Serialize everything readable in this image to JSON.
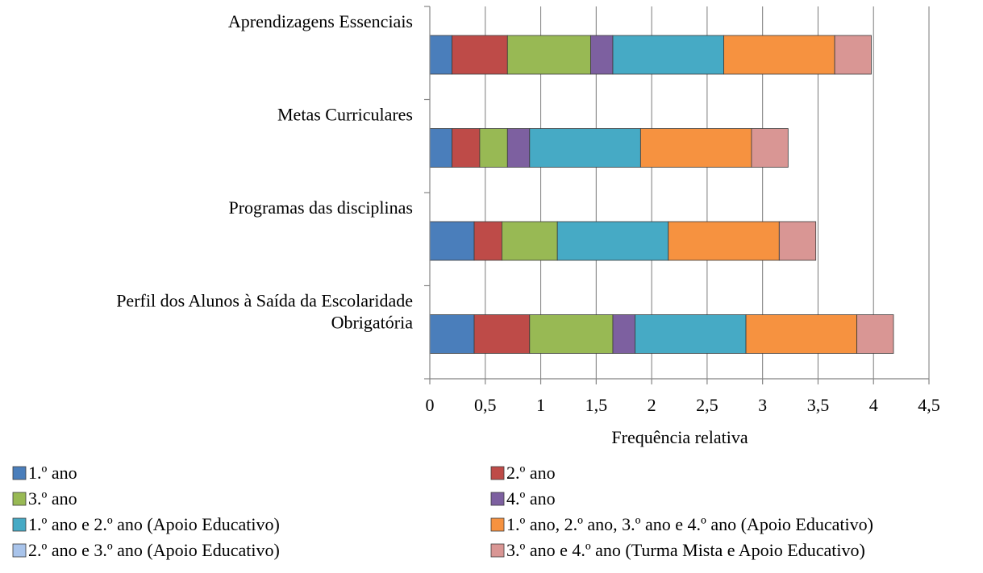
{
  "chart_data": {
    "type": "bar",
    "orientation": "horizontal",
    "stacked": true,
    "title": "",
    "xlabel": "Frequência relativa",
    "ylabel": "",
    "xlim": [
      0,
      4.5
    ],
    "x_ticks": [
      0,
      0.5,
      1,
      1.5,
      2,
      2.5,
      3,
      3.5,
      4,
      4.5
    ],
    "x_tick_labels": [
      "0",
      "0,5",
      "1",
      "1,5",
      "2",
      "2,5",
      "3",
      "3,5",
      "4",
      "4,5"
    ],
    "grid": true,
    "legend_position": "bottom",
    "categories": [
      [
        "Aprendizagens Essenciais"
      ],
      [
        "Metas Curriculares"
      ],
      [
        "Programas das disciplinas"
      ],
      [
        "Perfil dos Alunos à Saída da Escolaridade",
        "Obrigatória"
      ]
    ],
    "series": [
      {
        "name": "1.º ano",
        "color": "#4A7EBB",
        "values": [
          0.2,
          0.2,
          0.4,
          0.4
        ]
      },
      {
        "name": "2.º ano",
        "color": "#BE4B48",
        "values": [
          0.5,
          0.25,
          0.25,
          0.5
        ]
      },
      {
        "name": "3.º ano",
        "color": "#98B954",
        "values": [
          0.75,
          0.25,
          0.5,
          0.75
        ]
      },
      {
        "name": "4.º ano",
        "color": "#7D60A0",
        "values": [
          0.2,
          0.2,
          0.0,
          0.2
        ]
      },
      {
        "name": "1.º ano e 2.º ano (Apoio Educativo)",
        "color": "#46AAC5",
        "values": [
          1.0,
          1.0,
          1.0,
          1.0
        ]
      },
      {
        "name": "1.º ano, 2.º ano, 3.º ano e 4.º ano (Apoio Educativo)",
        "color": "#F69240",
        "values": [
          1.0,
          1.0,
          1.0,
          1.0
        ]
      },
      {
        "name": "2.º ano e 3.º ano (Apoio Educativo)",
        "color": "#A9C4EB",
        "values": [
          0,
          0,
          0,
          0
        ]
      },
      {
        "name": "3.º ano e 4.º ano (Turma Mista e Apoio Educativo)",
        "color": "#D99694",
        "values": [
          0.33,
          0.33,
          0.33,
          0.33
        ]
      }
    ]
  }
}
